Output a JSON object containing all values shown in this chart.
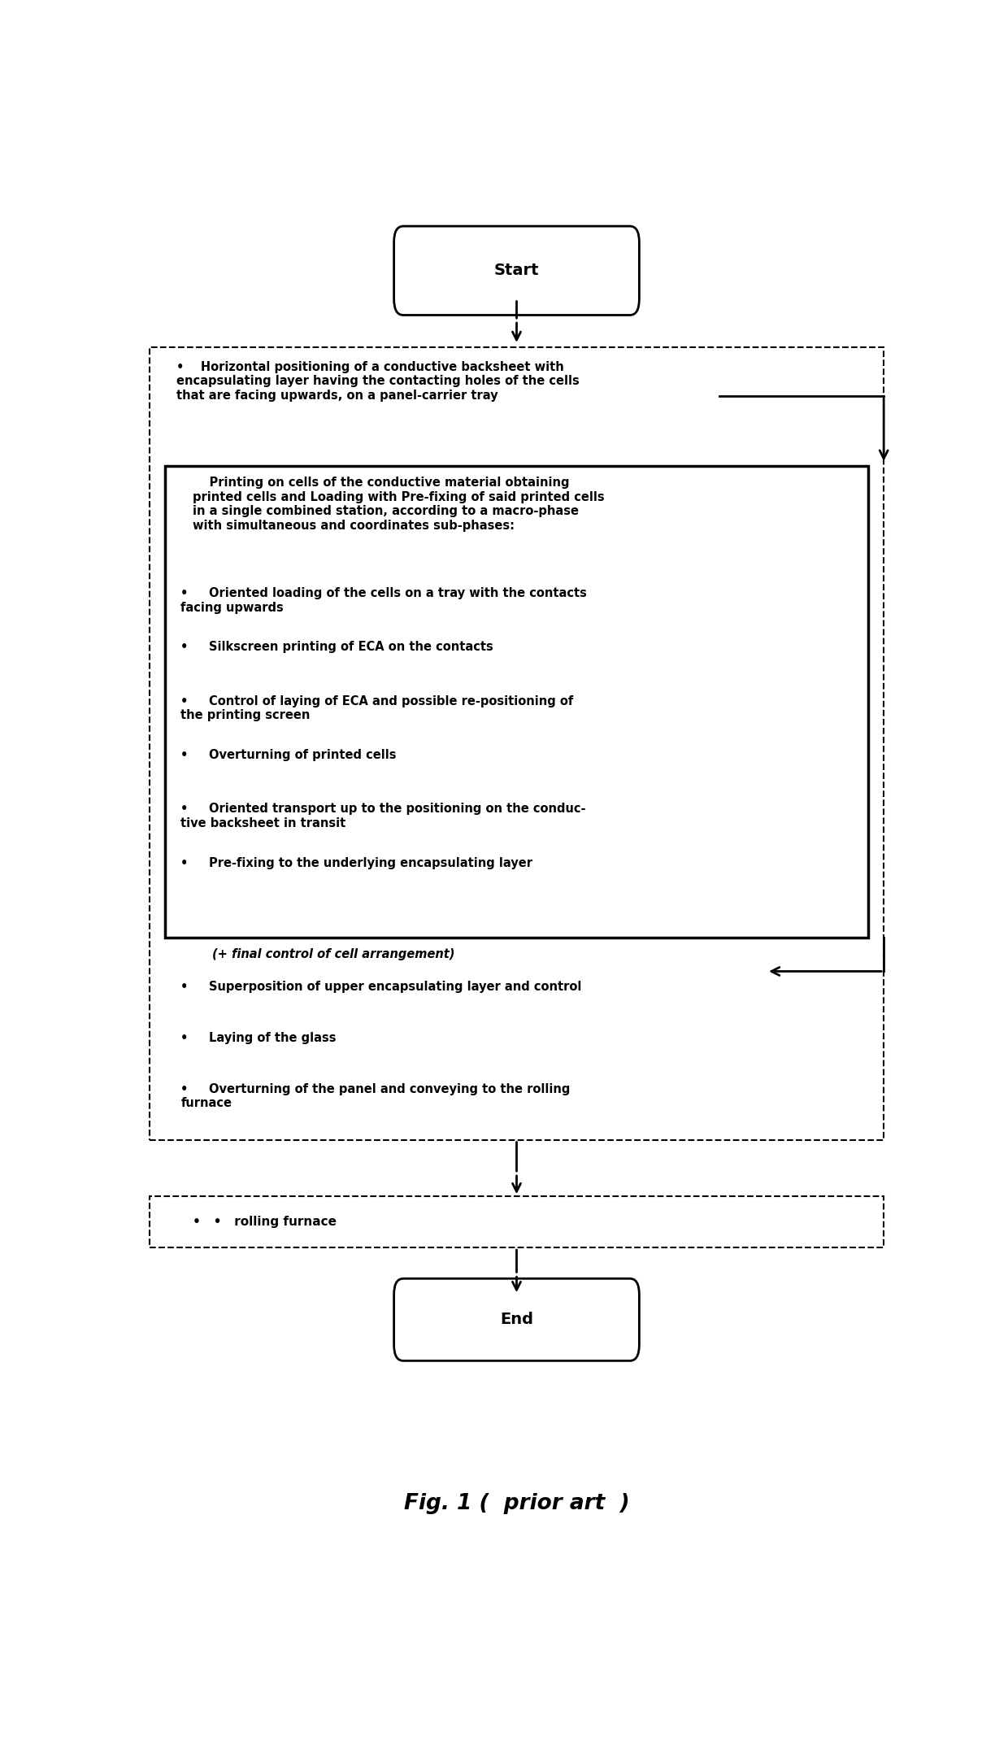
{
  "bg_color": "#ffffff",
  "fig_width": 12.4,
  "fig_height": 21.52,
  "title": "Fig. 1 (  prior art  )",
  "start_label": "Start",
  "end_label": "End",
  "rolling_furnace_label": "•   •   rolling furnace",
  "box1_text": "•    Horizontal positioning of a conductive backsheet with\nencapsulating layer having the contacting holes of the cells\nthat are facing upwards, on a panel-carrier tray",
  "box2_header": "    Printing on cells of the conductive material obtaining\nprinted cells and Loading with Pre-fixing of said printed cells\nin a single combined station, according to a macro-phase\nwith simultaneous and coordinates sub-phases:",
  "box2_bullets": [
    "•     Oriented loading of the cells on a tray with the contacts\nfacing upwards",
    "•     Silkscreen printing of ECA on the contacts",
    "•     Control of laying of ECA and possible re-positioning of\nthe printing screen",
    "•     Overturning of printed cells",
    "•     Oriented transport up to the positioning on the conduc-\ntive backsheet in transit",
    "•     Pre-fixing to the underlying encapsulating layer"
  ],
  "final_control_text": "(+ final control of cell arrangement)",
  "box3_bullets": [
    "•     Superposition of upper encapsulating layer and control",
    "•     Laying of the glass",
    "•     Overturning of the panel and conveying to the rolling\nfurnace"
  ]
}
